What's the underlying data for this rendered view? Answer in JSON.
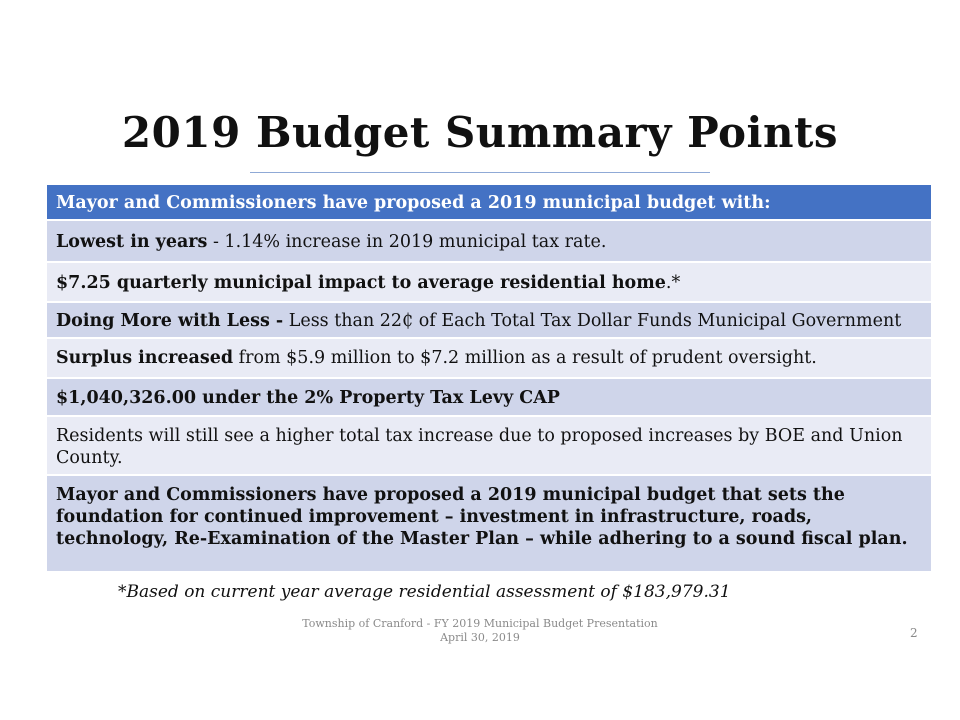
{
  "slide": {
    "title": "2019 Budget Summary Points",
    "header_row": "Mayor and Commissioners have proposed a 2019 municipal budget with:",
    "rows": [
      {
        "bold": "Lowest in years",
        "text": " - 1.14% increase in 2019 municipal tax rate."
      },
      {
        "bold": "$7.25 quarterly municipal impact to average residential home",
        "text": ".*"
      },
      {
        "bold": "Doing More with Less -",
        "text": " Less than 22₵ of Each Total Tax Dollar Funds Municipal Government"
      },
      {
        "bold": "Surplus increased",
        "text": " from $5.9 million to $7.2 million as a result of prudent oversight."
      },
      {
        "bold": "$1,040,326.00 under the 2% Property Tax Levy CAP",
        "text": ""
      },
      {
        "bold": "",
        "text": "Residents will still see a higher total tax increase due to proposed increases by BOE and Union County."
      },
      {
        "bold": "Mayor and Commissioners have proposed a 2019 municipal budget that sets the foundation for continued improvement – investment in infrastructure, roads, technology, Re-Examination of the Master Plan – while adhering to a sound fiscal plan.",
        "text": ""
      }
    ],
    "footnote": "*Based on current year average residential assessment of $183,979.31",
    "footer_line1": "Township of Cranford - FY 2019 Municipal Budget Presentation",
    "footer_line2": "April 30, 2019",
    "page_number": "2"
  },
  "colors": {
    "header_bg": "#4472c4",
    "row_dark": "#cfd5ea",
    "row_light": "#e9ebf5"
  }
}
